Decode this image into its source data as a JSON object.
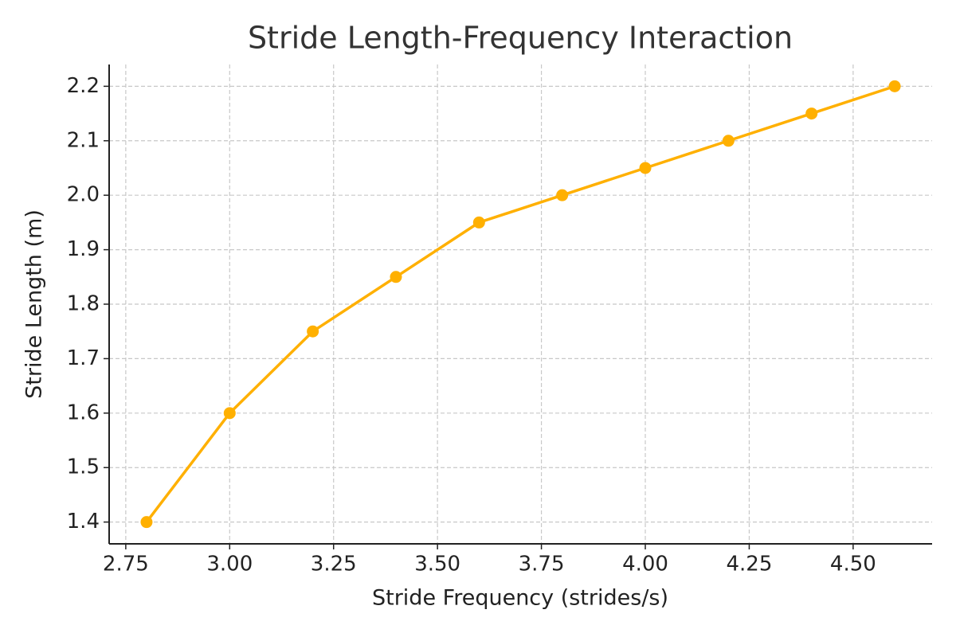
{
  "chart_data": {
    "type": "line",
    "title": "Stride Length-Frequency Interaction",
    "x_label": "Stride Frequency (strides/s)",
    "y_label": "Stride Length (m)",
    "x": [
      2.8,
      3.0,
      3.2,
      3.4,
      3.6,
      3.8,
      4.0,
      4.2,
      4.4,
      4.6
    ],
    "series": [
      {
        "color": "#ffb000",
        "values": [
          1.4,
          1.6,
          1.75,
          1.85,
          1.95,
          2.0,
          2.05,
          2.1,
          2.15,
          2.2
        ]
      }
    ],
    "xlim": [
      2.71,
      4.69
    ],
    "ylim": [
      1.36,
      2.24
    ],
    "xticks": [
      {
        "value": 2.75,
        "label": "2.75"
      },
      {
        "value": 3,
        "label": "3.00"
      },
      {
        "value": 3.25,
        "label": "3.25"
      },
      {
        "value": 3.5,
        "label": "3.50"
      },
      {
        "value": 3.75,
        "label": "3.75"
      },
      {
        "value": 4,
        "label": "4.00"
      },
      {
        "value": 4.25,
        "label": "4.25"
      },
      {
        "value": 4.5,
        "label": "4.50"
      }
    ],
    "yticks": [
      1.4,
      1.5,
      1.6,
      1.7,
      1.8,
      1.9,
      {
        "value": 2,
        "label": "2.0"
      },
      2.1,
      2.2
    ],
    "grid": true
  }
}
